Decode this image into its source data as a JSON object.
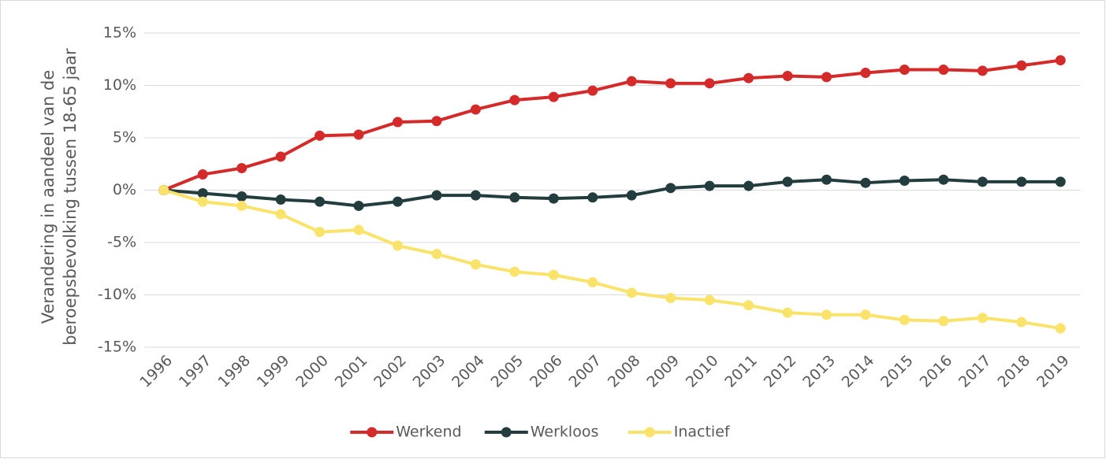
{
  "chart_data": {
    "type": "line",
    "y_label": [
      "Verandering in aandeel van de",
      "beroepsbevolking tussen 18-65 jaar"
    ],
    "categories": [
      "1996",
      "1997",
      "1998",
      "1999",
      "2000",
      "2001",
      "2002",
      "2003",
      "2004",
      "2005",
      "2006",
      "2007",
      "2008",
      "2009",
      "2010",
      "2011",
      "2012",
      "2013",
      "2014",
      "2015",
      "2016",
      "2017",
      "2018",
      "2019"
    ],
    "series": [
      {
        "name": "Werkend",
        "color": "#d42a2a",
        "values": [
          0,
          1.5,
          2.1,
          3.2,
          5.2,
          5.3,
          6.5,
          6.6,
          7.7,
          8.6,
          8.9,
          9.5,
          10.4,
          10.2,
          10.2,
          10.7,
          10.9,
          10.8,
          11.2,
          11.5,
          11.5,
          11.4,
          11.9,
          12.4
        ]
      },
      {
        "name": "Werkloos",
        "color": "#233d3f",
        "values": [
          0,
          -0.3,
          -0.6,
          -0.9,
          -1.1,
          -1.5,
          -1.1,
          -0.5,
          -0.5,
          -0.7,
          -0.8,
          -0.7,
          -0.5,
          0.2,
          0.4,
          0.4,
          0.8,
          1.0,
          0.7,
          0.9,
          1.0,
          0.8,
          0.8,
          0.8
        ]
      },
      {
        "name": "Inactief",
        "color": "#f9e36a",
        "values": [
          0,
          -1.1,
          -1.5,
          -2.3,
          -4.0,
          -3.8,
          -5.3,
          -6.1,
          -7.1,
          -7.8,
          -8.1,
          -8.8,
          -9.8,
          -10.3,
          -10.5,
          -11.0,
          -11.7,
          -11.9,
          -11.9,
          -12.4,
          -12.5,
          -12.2,
          -12.6,
          -13.2
        ]
      }
    ],
    "ylim": [
      -15,
      15
    ],
    "yticks": [
      {
        "value": 15,
        "label": "15%"
      },
      {
        "value": 10,
        "label": "10%"
      },
      {
        "value": 5,
        "label": "5%"
      },
      {
        "value": 0,
        "label": "0%"
      },
      {
        "value": -5,
        "label": "-5%"
      },
      {
        "value": -10,
        "label": "-10%"
      },
      {
        "value": -15,
        "label": "-15%"
      }
    ],
    "grid": true,
    "legend": "bottom"
  }
}
